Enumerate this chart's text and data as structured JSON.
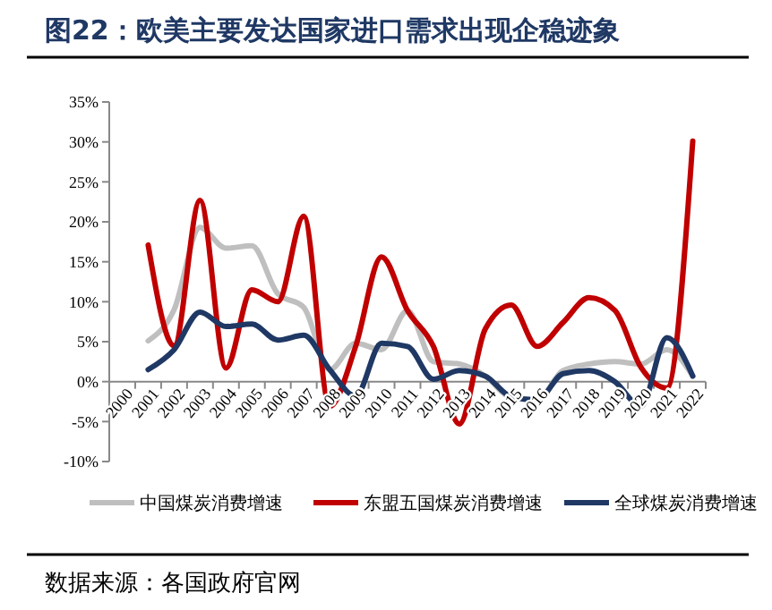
{
  "chart_data": {
    "type": "line",
    "title": "图22：欧美主要发达国家进口需求出现企稳迹象",
    "categories": [
      "2000",
      "2001",
      "2002",
      "2003",
      "2004",
      "2005",
      "2006",
      "2007",
      "2008",
      "2009",
      "2010",
      "2011",
      "2012",
      "2013",
      "2014",
      "2015",
      "2016",
      "2017",
      "2018",
      "2019",
      "2020",
      "2021",
      "2022"
    ],
    "series": [
      {
        "name": "中国煤炭消费增速",
        "color": "#bfbfbf",
        "values": [
          null,
          5.1,
          9,
          19.3,
          16.7,
          17,
          11,
          9.3,
          1.5,
          4.8,
          4.0,
          8.9,
          2.5,
          2.2,
          0.7,
          -2,
          -2.3,
          1.4,
          2.2,
          2.5,
          2.2,
          4.0,
          0.7
        ]
      },
      {
        "name": "东盟五国煤炭消费增速",
        "color": "#c00000",
        "values": [
          null,
          17.1,
          4.5,
          22.7,
          1.7,
          11.5,
          10,
          20.7,
          -3.1,
          4.4,
          15.6,
          8.9,
          4.4,
          -5.3,
          6.6,
          9.6,
          4.4,
          7.4,
          10.5,
          8.9,
          1.8,
          -0.8,
          30.1
        ]
      },
      {
        "name": "全球煤炭消费增速",
        "color": "#1f3864",
        "values": [
          null,
          1.5,
          4,
          8.7,
          6.9,
          7.2,
          5.2,
          5.8,
          1.5,
          -1.8,
          4.8,
          4.4,
          0.3,
          1.4,
          0.7,
          -1.9,
          -2.3,
          1.0,
          1.4,
          0,
          -3.1,
          5.5,
          0.7
        ]
      }
    ],
    "ylim": [
      -10,
      35
    ],
    "yticks": [
      {
        "value": -10,
        "label": "-10%"
      },
      {
        "value": -5,
        "label": "-5%"
      },
      {
        "value": 0,
        "label": "0%"
      },
      {
        "value": 5,
        "label": "5%"
      },
      {
        "value": 10,
        "label": "10%"
      },
      {
        "value": 15,
        "label": "15%"
      },
      {
        "value": 20,
        "label": "20%"
      },
      {
        "value": 25,
        "label": "25%"
      },
      {
        "value": 30,
        "label": "30%"
      },
      {
        "value": 35,
        "label": "35%"
      }
    ],
    "grid": false,
    "legend": "bottom",
    "marker": "none",
    "line_style": "solid",
    "annotations": [
      "数据来源：各国政府官网"
    ]
  }
}
